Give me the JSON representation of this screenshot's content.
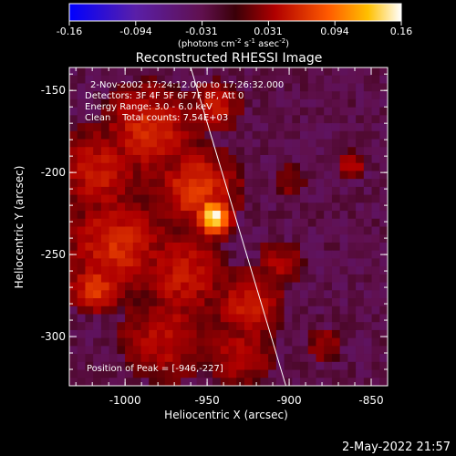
{
  "colorbar": {
    "ticks": [
      "-0.16",
      "-0.094",
      "-0.031",
      "0.031",
      "0.094",
      "0.16"
    ],
    "units_pre": "(photons cm",
    "units_exp1": "-2",
    "units_mid1": " s",
    "units_exp2": "-1",
    "units_mid2": " asec",
    "units_exp3": "-2",
    "units_post": ")"
  },
  "info": {
    "time_range": "2-Nov-2002 17:24:12.000 to 17:26:32.000",
    "detectors": "Detectors: 3F 4F 5F 6F 7F 8F, Att 0",
    "energy": "Energy Range: 3.0 - 6.0 keV",
    "clean": "Clean    Total counts: 7.54E+03",
    "peak": "Position of Peak = [-946,-227]"
  },
  "timestamp": "2-May-2022 21:57",
  "chart_data": {
    "type": "heatmap",
    "title": "Reconstructed RHESSI Image",
    "xlabel": "Heliocentric X (arcsec)",
    "ylabel": "Heliocentric Y (arcsec)",
    "xlim": [
      -1034,
      -840
    ],
    "ylim": [
      -330,
      -136
    ],
    "x_ticks": [
      -1000,
      -950,
      -900,
      -850
    ],
    "y_ticks": [
      -150,
      -200,
      -250,
      -300
    ],
    "x_tick_labels": [
      "-1000",
      "-950",
      "-900",
      "-850"
    ],
    "y_tick_labels": [
      "-150",
      "-200",
      "-250",
      "-300"
    ],
    "color_range": [
      -0.16,
      0.16
    ],
    "peak": [
      -946,
      -227
    ],
    "limb_line": [
      [
        -960,
        -136
      ],
      [
        -902,
        -330
      ]
    ],
    "features": [
      {
        "x": -946,
        "y": -227,
        "value": 0.16,
        "sigma": 7
      },
      {
        "x": -956,
        "y": -210,
        "value": 0.07,
        "sigma": 16
      },
      {
        "x": -985,
        "y": -175,
        "value": 0.06,
        "sigma": 18
      },
      {
        "x": -1015,
        "y": -200,
        "value": 0.05,
        "sigma": 18
      },
      {
        "x": -1005,
        "y": -245,
        "value": 0.06,
        "sigma": 20
      },
      {
        "x": -1018,
        "y": -270,
        "value": 0.07,
        "sigma": 10
      },
      {
        "x": -965,
        "y": -262,
        "value": 0.05,
        "sigma": 18
      },
      {
        "x": -925,
        "y": -282,
        "value": 0.055,
        "sigma": 14
      },
      {
        "x": -975,
        "y": -300,
        "value": 0.045,
        "sigma": 18
      },
      {
        "x": -930,
        "y": -310,
        "value": 0.04,
        "sigma": 14
      },
      {
        "x": -905,
        "y": -255,
        "value": 0.035,
        "sigma": 10
      },
      {
        "x": -945,
        "y": -160,
        "value": 0.05,
        "sigma": 10
      },
      {
        "x": -862,
        "y": -196,
        "value": 0.04,
        "sigma": 6
      },
      {
        "x": -878,
        "y": -305,
        "value": 0.03,
        "sigma": 8
      },
      {
        "x": -900,
        "y": -205,
        "value": 0.025,
        "sigma": 8
      }
    ],
    "background_value": -0.03
  }
}
